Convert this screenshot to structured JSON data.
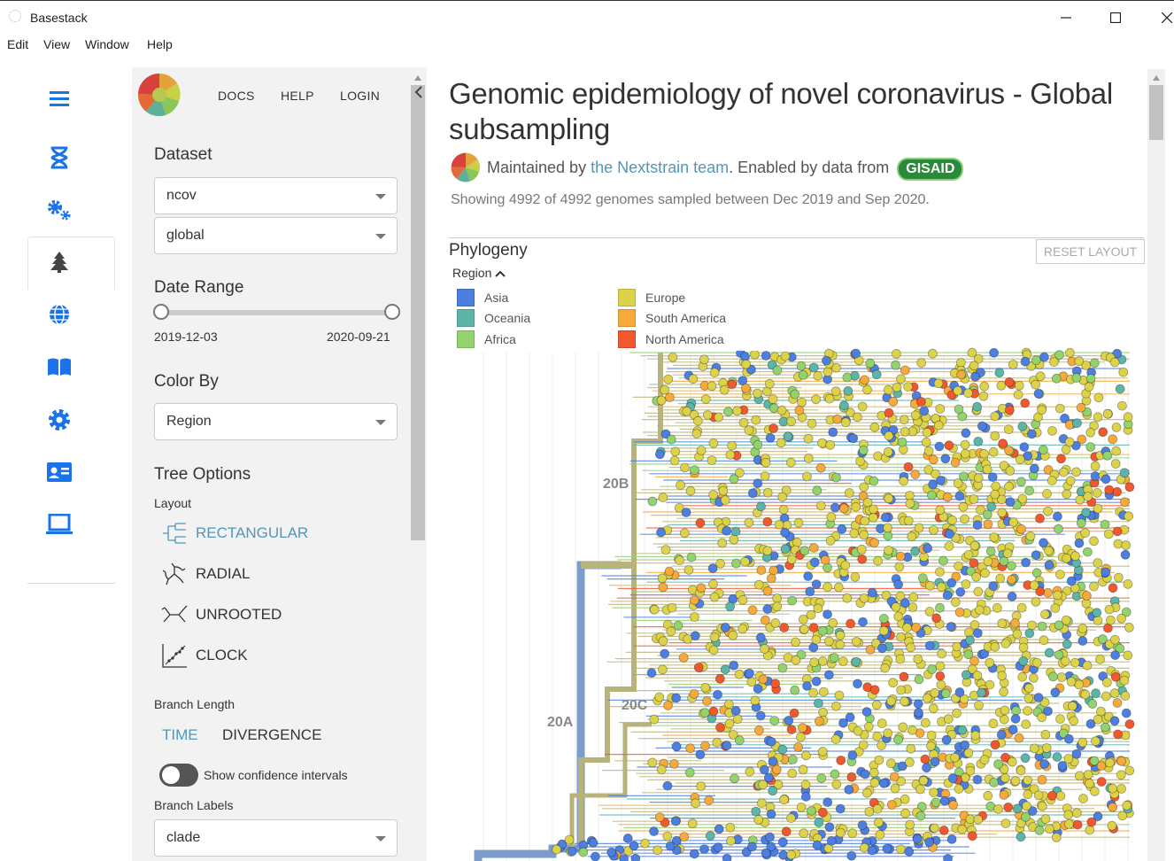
{
  "window": {
    "title": "Basestack"
  },
  "menu": [
    "Edit",
    "View",
    "Window",
    "Help"
  ],
  "nav_icons": [
    "menu-icon",
    "dna-icon",
    "gears-icon",
    "tree-icon",
    "globe-icon",
    "book-icon",
    "settings-icon",
    "id-card-icon",
    "laptop-icon"
  ],
  "sidebar": {
    "links": [
      "DOCS",
      "HELP",
      "LOGIN"
    ],
    "dataset_title": "Dataset",
    "dataset_values": [
      "ncov",
      "global"
    ],
    "date_range_title": "Date Range",
    "date_min": "2019-12-03",
    "date_max": "2020-09-21",
    "color_by_title": "Color By",
    "color_by_value": "Region",
    "tree_options_title": "Tree Options",
    "layout_label": "Layout",
    "layouts": [
      "RECTANGULAR",
      "RADIAL",
      "UNROOTED",
      "CLOCK"
    ],
    "selected_layout": "RECTANGULAR",
    "branch_length_label": "Branch Length",
    "branch_length_options": [
      "TIME",
      "DIVERGENCE"
    ],
    "selected_branch_length": "TIME",
    "confidence_label": "Show confidence intervals",
    "confidence_on": false,
    "branch_labels_label": "Branch Labels",
    "branch_labels_value": "clade"
  },
  "main": {
    "title": "Genomic epidemiology of novel coronavirus - Global subsampling",
    "maintained_prefix": "Maintained by ",
    "maintained_link": "the Nextstrain team",
    "enabled_text": ". Enabled by data from ",
    "gisaid": "GISAID",
    "showing": "Showing 4992 of 4992 genomes sampled between Dec 2019 and Sep 2020.",
    "panel_title": "Phylogeny",
    "reset_label": "RESET LAYOUT",
    "legend_title": "Region",
    "legend": [
      {
        "name": "Asia",
        "color": "#4C7FE0"
      },
      {
        "name": "Oceania",
        "color": "#5BB5A9"
      },
      {
        "name": "Africa",
        "color": "#92D36E"
      },
      {
        "name": "Europe",
        "color": "#DDD34A"
      },
      {
        "name": "South America",
        "color": "#F7AA3C"
      },
      {
        "name": "North America",
        "color": "#F2582D"
      }
    ],
    "clade_labels": [
      "20B",
      "20C",
      "20A"
    ]
  }
}
